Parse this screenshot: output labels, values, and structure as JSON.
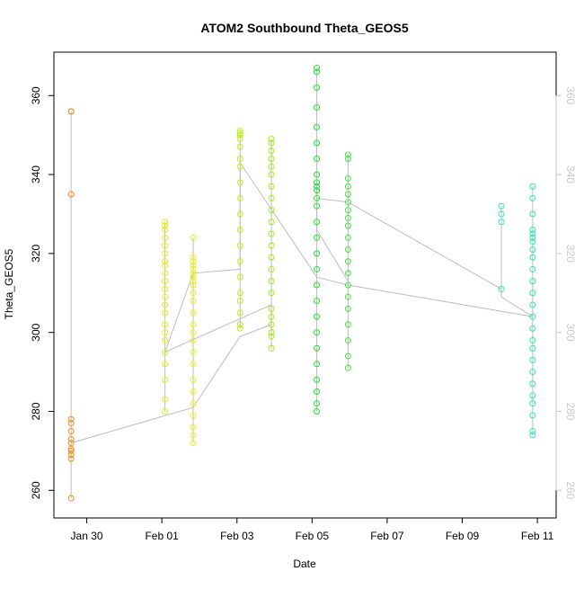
{
  "chart_data": {
    "type": "scatter",
    "title": "ATOM2 Southbound Theta_GEOS5",
    "xlabel": "Date",
    "ylabel": "Theta_GEOS5",
    "x_ticks": [
      "Jan 30",
      "Feb 01",
      "Feb 03",
      "Feb 05",
      "Feb 07",
      "Feb 09",
      "Feb 11"
    ],
    "y_ticks_left": [
      "260",
      "280",
      "300",
      "320",
      "340",
      "360"
    ],
    "y_ticks_right": [
      "260",
      "280",
      "300",
      "320",
      "340",
      "360"
    ],
    "xlim": [
      "2017-01-29T03:00",
      "2017-02-11T12:00"
    ],
    "ylim": [
      253,
      371
    ],
    "grid": false,
    "legend": "none",
    "connector_color": "#bdbdbd",
    "right_axis_color": "#c8c8c8",
    "series": [
      {
        "color": "#f08c1e",
        "x": "2017-01-29T14:00",
        "y": [
          258,
          268,
          269,
          270,
          270.5,
          272,
          273,
          275,
          277,
          278,
          335,
          356,
          356
        ]
      },
      {
        "color": "#e3ee14",
        "x": "2017-02-01T02:00",
        "y": [
          280,
          283,
          288,
          292,
          295,
          298,
          300,
          302,
          305,
          307,
          309,
          311,
          313,
          315,
          317,
          318,
          320,
          322,
          324,
          326,
          327,
          328
        ]
      },
      {
        "color": "#e9f214",
        "x": "2017-02-01T20:00",
        "y": [
          272,
          274,
          276,
          279,
          282,
          285,
          288,
          292,
          295,
          298,
          300,
          302,
          305,
          308,
          310,
          312,
          313,
          314,
          315,
          316,
          317,
          318,
          319,
          324
        ]
      },
      {
        "color": "#bdee14",
        "x": "2017-02-03T02:00",
        "y": [
          301,
          302,
          305,
          308,
          310,
          314,
          318,
          322,
          326,
          330,
          334,
          338,
          342,
          344,
          347,
          349,
          350,
          350.5,
          351
        ]
      },
      {
        "color": "#9bee14",
        "x": "2017-02-03T22:00",
        "y": [
          296,
          299,
          300,
          302,
          304,
          306,
          310,
          313,
          316,
          319,
          322,
          325,
          328,
          331,
          334,
          337,
          340,
          342,
          344,
          346,
          348,
          349
        ]
      },
      {
        "color": "#16e32a",
        "x": "2017-02-05T03:00",
        "y": [
          280,
          282,
          285,
          288,
          292,
          296,
          300,
          304,
          308,
          312,
          316,
          320,
          324,
          328,
          332,
          334,
          336,
          337,
          338,
          340,
          344,
          348,
          352,
          357,
          362,
          366,
          367
        ]
      },
      {
        "color": "#3ee838",
        "x": "2017-02-05T23:00",
        "y": [
          291,
          294,
          298,
          302,
          306,
          309,
          312,
          315,
          318,
          321,
          324,
          327,
          329,
          331,
          333,
          335,
          337,
          339,
          344,
          345
        ]
      },
      {
        "color": "#32e8c0",
        "x": "2017-02-10T01:00",
        "y": [
          311,
          328,
          330,
          332
        ]
      },
      {
        "color": "#28e6b6",
        "x": "2017-02-10T21:00",
        "y": [
          274,
          275,
          279,
          282,
          284,
          287,
          290,
          293,
          296,
          298,
          301,
          304,
          307,
          310,
          313,
          316,
          319,
          321,
          323,
          324,
          325,
          326,
          330,
          334,
          337
        ]
      }
    ],
    "transit_path": [
      [
        "2017-01-29T14:00",
        272
      ],
      [
        "2017-02-01T20:00",
        281
      ],
      [
        "2017-02-03T02:00",
        299
      ],
      [
        "2017-02-03T22:00",
        302
      ],
      [
        "2017-02-03T22:00",
        307
      ],
      [
        "2017-02-01T02:00",
        295
      ],
      [
        "2017-02-01T20:00",
        315
      ],
      [
        "2017-02-03T02:00",
        316
      ],
      [
        "2017-02-03T02:00",
        343
      ],
      [
        "2017-02-05T03:00",
        314
      ],
      [
        "2017-02-05T23:00",
        312
      ],
      [
        "2017-02-10T21:00",
        304
      ],
      [
        "2017-02-10T01:00",
        309
      ],
      [
        "2017-02-10T01:00",
        311
      ],
      [
        "2017-02-05T23:00",
        333
      ],
      [
        "2017-02-05T03:00",
        334
      ],
      [
        "2017-02-05T03:00",
        326
      ],
      [
        "2017-02-05T23:00",
        313
      ]
    ]
  }
}
